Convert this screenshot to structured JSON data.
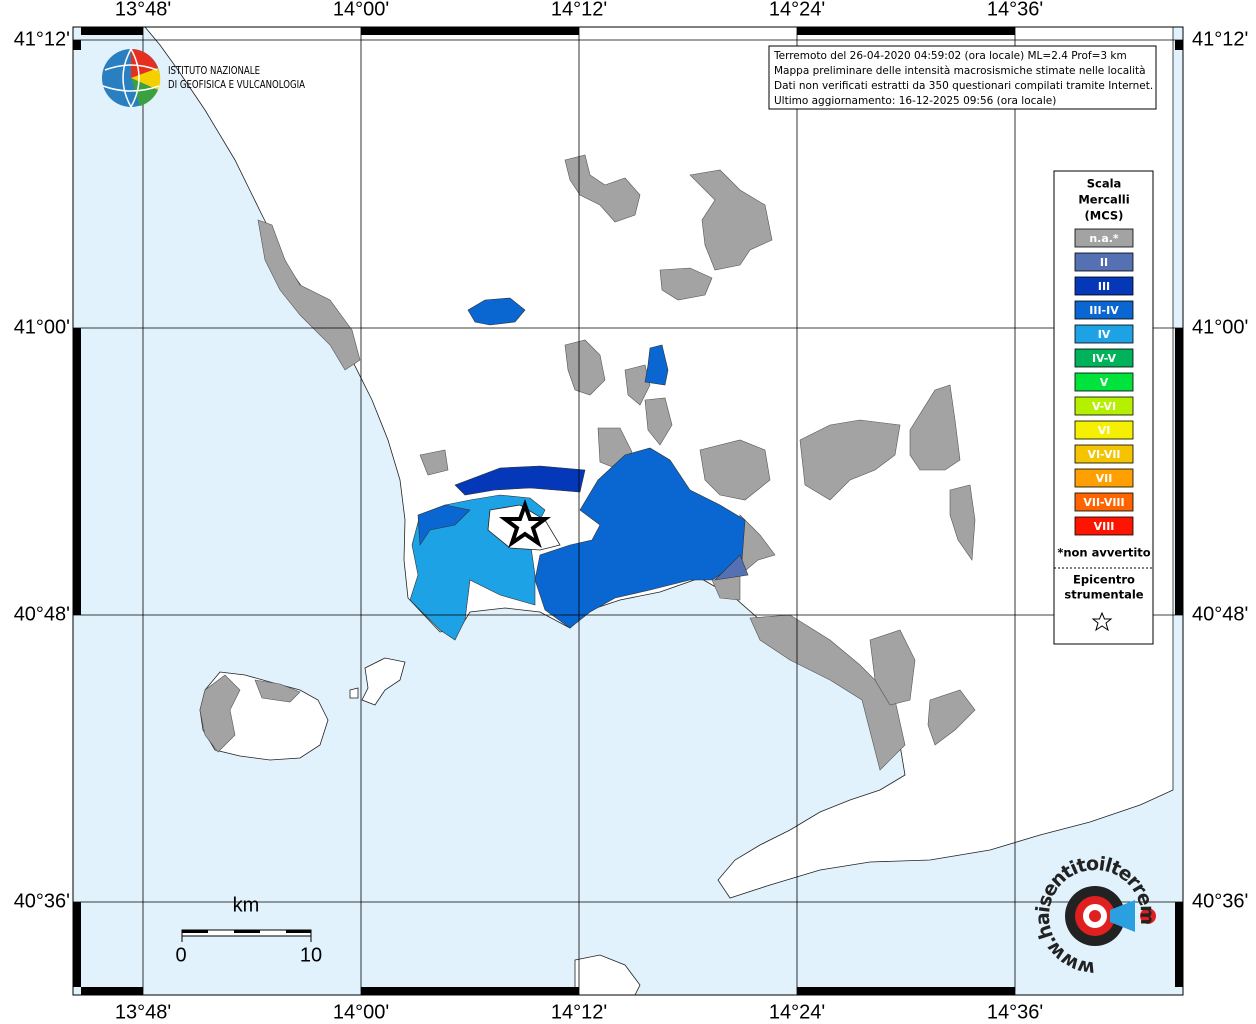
{
  "map": {
    "lon_labels": [
      "13°48'",
      "14°00'",
      "14°12'",
      "14°24'",
      "14°36'"
    ],
    "lat_labels": [
      "41°12'",
      "41°00'",
      "40°48'",
      "40°36'"
    ]
  },
  "logo": {
    "lines": [
      "ISTITUTO NAZIONALE",
      "DI GEOFISICA E VULCANOLOGIA"
    ]
  },
  "info_box": {
    "lines": [
      "Terremoto del 26-04-2020 04:59:02 (ora locale) ML=2.4 Prof=3 km",
      "Mappa preliminare delle intensità macrosismiche stimate nelle località",
      "Dati non verificati estratti da 350 questionari compilati tramite Internet.",
      "Ultimo aggiornamento: 16-12-2025 09:56 (ora locale)"
    ]
  },
  "legend": {
    "title_lines": [
      "Scala",
      "Mercalli",
      "(MCS)"
    ],
    "items": [
      {
        "label": "n.a.*",
        "color": "#a3a3a3"
      },
      {
        "label": "II",
        "color": "#5670b4"
      },
      {
        "label": "III",
        "color": "#0538b8"
      },
      {
        "label": "III-IV",
        "color": "#0a66d0"
      },
      {
        "label": "IV",
        "color": "#1ea2e6"
      },
      {
        "label": "IV-V",
        "color": "#00b25a"
      },
      {
        "label": "V",
        "color": "#00e23c"
      },
      {
        "label": "V-VI",
        "color": "#b4f000"
      },
      {
        "label": "VI",
        "color": "#f5f000"
      },
      {
        "label": "VI-VII",
        "color": "#f5c400"
      },
      {
        "label": "VII",
        "color": "#ffa000"
      },
      {
        "label": "VII-VIII",
        "color": "#ff6400"
      },
      {
        "label": "VIII",
        "color": "#ff1400"
      }
    ],
    "note": "*non avvertito",
    "epicenter_title_lines": [
      "Epicentro",
      "strumentale"
    ]
  },
  "scale_bar": {
    "unit": "km",
    "labels": [
      "0",
      "10"
    ]
  },
  "site_logo": {
    "text": "www.haisentitoilterremoto.it"
  }
}
